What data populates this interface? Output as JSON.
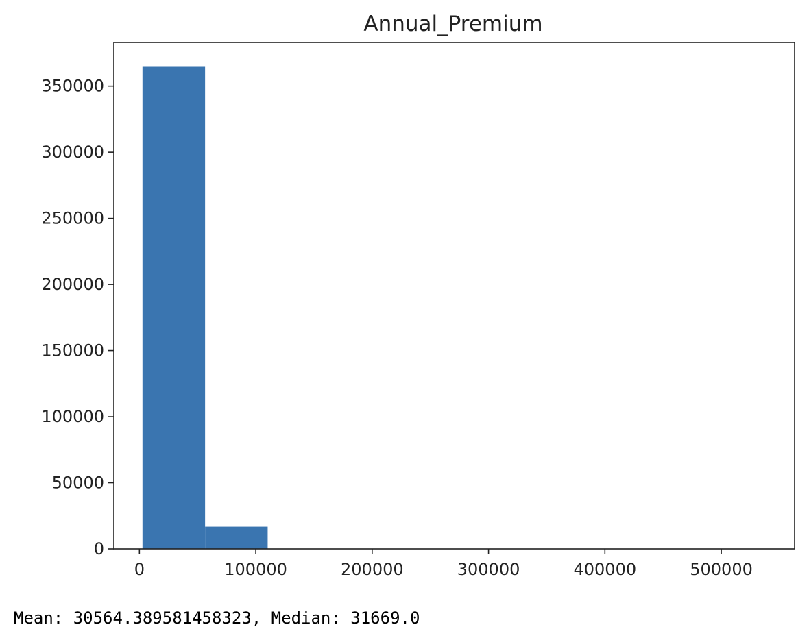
{
  "chart_data": {
    "type": "bar",
    "title": "Annual_Premium",
    "xlabel": "",
    "ylabel": "",
    "bar_color": "#3a75b0",
    "x_ticks": [
      0,
      100000,
      200000,
      300000,
      400000,
      500000
    ],
    "y_ticks": [
      0,
      50000,
      100000,
      150000,
      200000,
      250000,
      300000,
      350000
    ],
    "xlim": [
      -22000,
      563000
    ],
    "ylim": [
      0,
      383000
    ],
    "bins": [
      {
        "x_start": 2630,
        "x_end": 56429,
        "count": 364600
      },
      {
        "x_start": 56429,
        "x_end": 110228,
        "count": 16800
      },
      {
        "x_start": 110228,
        "x_end": 164027,
        "count": 180
      },
      {
        "x_start": 164027,
        "x_end": 217826,
        "count": 60
      },
      {
        "x_start": 217826,
        "x_end": 271625,
        "count": 40
      },
      {
        "x_start": 271625,
        "x_end": 325424,
        "count": 10
      },
      {
        "x_start": 325424,
        "x_end": 379223,
        "count": 5
      },
      {
        "x_start": 379223,
        "x_end": 433022,
        "count": 2
      },
      {
        "x_start": 433022,
        "x_end": 486821,
        "count": 1
      },
      {
        "x_start": 486821,
        "x_end": 540620,
        "count": 3
      }
    ],
    "grid": false,
    "legend": "none"
  },
  "output": {
    "stats_text": "Mean: 30564.389581458323, Median: 31669.0"
  }
}
